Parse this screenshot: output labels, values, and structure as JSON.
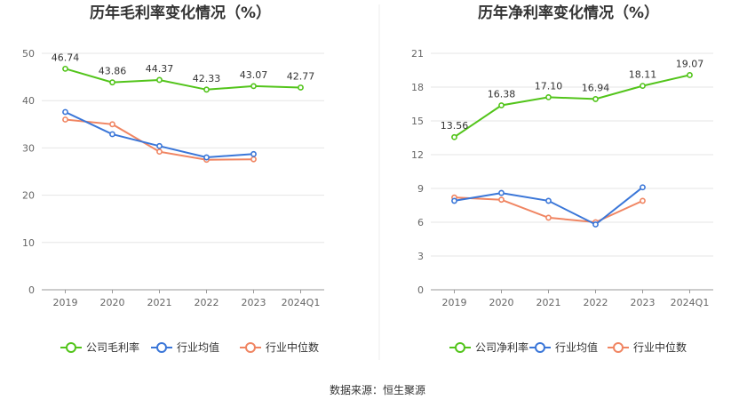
{
  "source_text": "数据来源：恒生聚源",
  "chart_data": [
    {
      "type": "line",
      "title": "历年毛利率变化情况（%）",
      "categories": [
        "2019",
        "2020",
        "2021",
        "2022",
        "2023",
        "2024Q1"
      ],
      "yticks": [
        "0",
        "10",
        "20",
        "30",
        "40",
        "50"
      ],
      "ylim": [
        0,
        50
      ],
      "grid": true,
      "legend_position": "bottom",
      "series": [
        {
          "name": "公司毛利率",
          "color": "#52c41a",
          "values": [
            46.74,
            43.86,
            44.37,
            42.33,
            43.07,
            42.77
          ],
          "labels": [
            "46.74",
            "43.86",
            "44.37",
            "42.33",
            "43.07",
            "42.77"
          ]
        },
        {
          "name": "行业均值",
          "color": "#3a76d8",
          "values": [
            37.6,
            32.9,
            30.4,
            28.0,
            28.7,
            null
          ],
          "labels": []
        },
        {
          "name": "行业中位数",
          "color": "#f08562",
          "values": [
            36.0,
            35.0,
            29.2,
            27.5,
            27.6,
            null
          ],
          "labels": []
        }
      ]
    },
    {
      "type": "line",
      "title": "历年净利率变化情况（%）",
      "categories": [
        "2019",
        "2020",
        "2021",
        "2022",
        "2023",
        "2024Q1"
      ],
      "yticks": [
        "0",
        "3",
        "6",
        "9",
        "12",
        "15",
        "18",
        "21"
      ],
      "ylim": [
        0,
        21
      ],
      "grid": true,
      "legend_position": "bottom",
      "series": [
        {
          "name": "公司净利率",
          "color": "#52c41a",
          "values": [
            13.56,
            16.38,
            17.1,
            16.94,
            18.11,
            19.07
          ],
          "labels": [
            "13.56",
            "16.38",
            "17.10",
            "16.94",
            "18.11",
            "19.07"
          ]
        },
        {
          "name": "行业均值",
          "color": "#3a76d8",
          "values": [
            7.9,
            8.6,
            7.9,
            5.8,
            9.1,
            null
          ],
          "labels": []
        },
        {
          "name": "行业中位数",
          "color": "#f08562",
          "values": [
            8.2,
            8.0,
            6.4,
            6.0,
            7.9,
            null
          ],
          "labels": []
        }
      ]
    }
  ]
}
